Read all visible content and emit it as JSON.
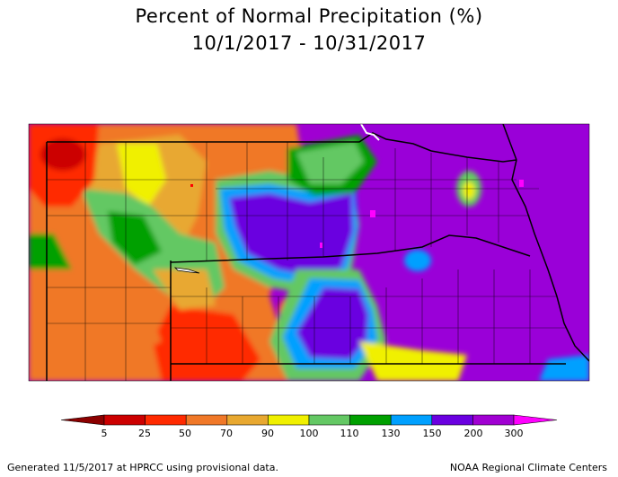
{
  "title": "Percent of Normal Precipitation (%)",
  "subtitle": "10/1/2017 - 10/31/2017",
  "legend": {
    "ticks": [
      "5",
      "25",
      "50",
      "70",
      "90",
      "100",
      "110",
      "130",
      "150",
      "200",
      "300"
    ],
    "colors": [
      "#8b0000",
      "#cc0000",
      "#ff2a00",
      "#f07828",
      "#e8a830",
      "#f0f000",
      "#64c864",
      "#00a000",
      "#00a0ff",
      "#6a00e0",
      "#a000d2",
      "#ff00ff"
    ]
  },
  "footer": {
    "left": "Generated 11/5/2017 at HPRCC using provisional data.",
    "right": "NOAA Regional Climate Centers"
  }
}
